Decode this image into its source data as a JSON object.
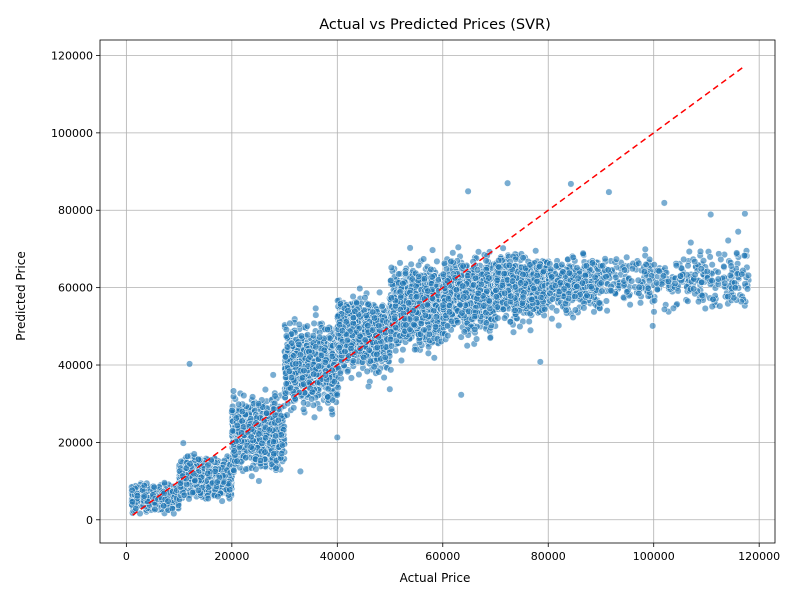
{
  "chart_data": {
    "type": "scatter",
    "title": "Actual vs Predicted Prices (SVR)",
    "xlabel": "Actual Price",
    "ylabel": "Predicted Price",
    "xlim": [
      -5000,
      123000
    ],
    "ylim": [
      -6000,
      124000
    ],
    "xticks": [
      0,
      20000,
      40000,
      60000,
      80000,
      100000,
      120000
    ],
    "yticks": [
      0,
      20000,
      40000,
      60000,
      80000,
      100000,
      120000
    ],
    "grid": true,
    "colors": {
      "points": "#1f77b4",
      "reference_line": "#ff0000"
    },
    "reference_line": {
      "style": "dashed",
      "x": [
        1200,
        117300
      ],
      "y": [
        1200,
        117300
      ]
    },
    "points_estimated_count": 9000,
    "series": [
      {
        "point_clusters": [
          {
            "x_range": [
              1000,
              10000
            ],
            "y_center": 5500,
            "y_spread": 3000
          },
          {
            "x_range": [
              10000,
              20000
            ],
            "y_center": 11000,
            "y_spread": 5000
          },
          {
            "x_range": [
              20000,
              30000
            ],
            "y_center": 22000,
            "y_spread": 9000
          },
          {
            "x_range": [
              30000,
              40000
            ],
            "y_center": 40000,
            "y_spread": 10000
          },
          {
            "x_range": [
              40000,
              50000
            ],
            "y_center": 48000,
            "y_spread": 9000
          },
          {
            "x_range": [
              50000,
              60000
            ],
            "y_center": 55000,
            "y_spread": 10000
          },
          {
            "x_range": [
              60000,
              70000
            ],
            "y_center": 58000,
            "y_spread": 9000
          },
          {
            "x_range": [
              70000,
              80000
            ],
            "y_center": 60000,
            "y_spread": 8000
          },
          {
            "x_range": [
              80000,
              90000
            ],
            "y_center": 61000,
            "y_spread": 7000
          },
          {
            "x_range": [
              90000,
              118000
            ],
            "y_center": 62000,
            "y_spread": 8000
          }
        ],
        "notable_points": [
          {
            "x": 12000,
            "y": 40300
          },
          {
            "x": 63500,
            "y": 32300
          },
          {
            "x": 91500,
            "y": 84700
          },
          {
            "x": 102000,
            "y": 81900
          },
          {
            "x": 99800,
            "y": 50100
          },
          {
            "x": 110800,
            "y": 78900
          },
          {
            "x": 117300,
            "y": 79100
          },
          {
            "x": 114700,
            "y": 65600
          },
          {
            "x": 72300,
            "y": 87000
          },
          {
            "x": 84300,
            "y": 86800
          },
          {
            "x": 64800,
            "y": 84900
          },
          {
            "x": 78500,
            "y": 40800
          },
          {
            "x": 40000,
            "y": 21300
          },
          {
            "x": 33000,
            "y": 12500
          }
        ]
      }
    ]
  }
}
